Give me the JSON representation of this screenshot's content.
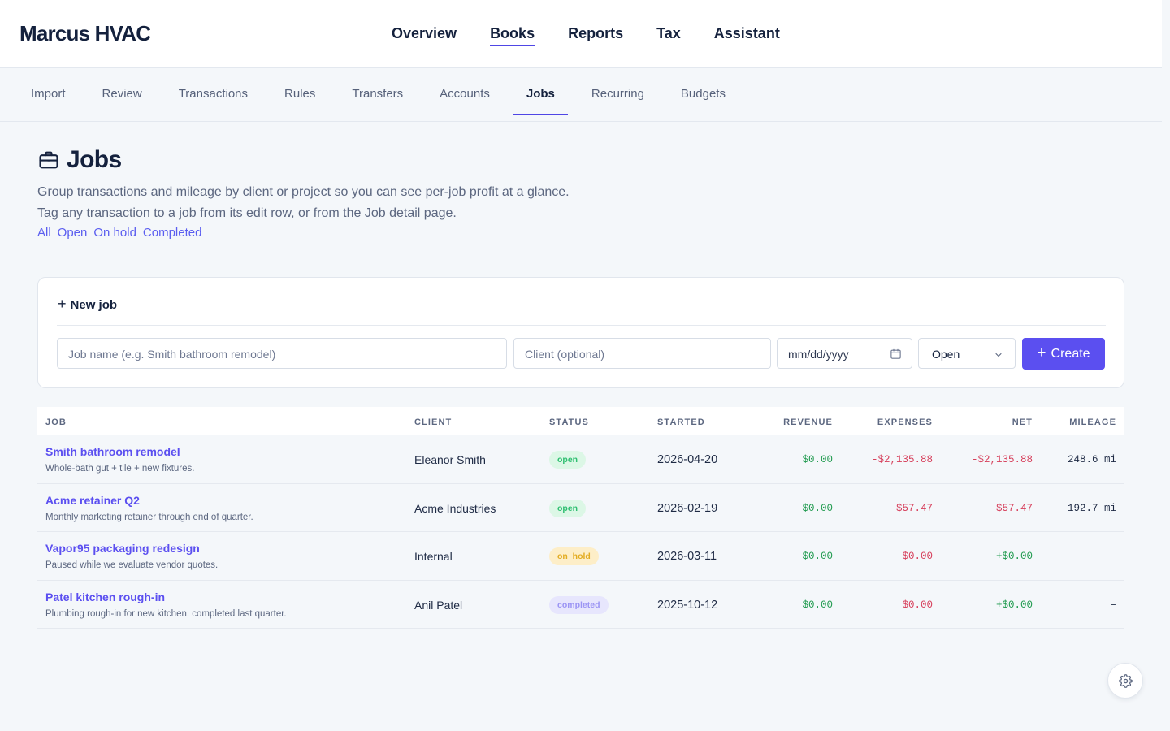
{
  "app": {
    "brand": "Marcus HVAC"
  },
  "main_nav": [
    {
      "label": "Overview",
      "active": false
    },
    {
      "label": "Books",
      "active": true
    },
    {
      "label": "Reports",
      "active": false
    },
    {
      "label": "Tax",
      "active": false
    },
    {
      "label": "Assistant",
      "active": false
    }
  ],
  "sub_nav": [
    {
      "label": "Import"
    },
    {
      "label": "Review"
    },
    {
      "label": "Transactions"
    },
    {
      "label": "Rules"
    },
    {
      "label": "Transfers"
    },
    {
      "label": "Accounts"
    },
    {
      "label": "Jobs",
      "active": true
    },
    {
      "label": "Recurring"
    },
    {
      "label": "Budgets"
    }
  ],
  "page": {
    "icon": "briefcase-icon",
    "title": "Jobs",
    "description_1": "Group transactions and mileage by client or project so you can see per-job profit at a glance.",
    "description_2": "Tag any transaction to a job from its edit row, or from the Job detail page.",
    "filters": [
      "All",
      "Open",
      "On hold",
      "Completed"
    ]
  },
  "new_job": {
    "heading": "New job",
    "job_placeholder": "Job name (e.g. Smith bathroom remodel)",
    "client_placeholder": "Client (optional)",
    "date_placeholder": "mm/dd/yyyy",
    "status_value": "Open",
    "create_label": "Create"
  },
  "table": {
    "headers": {
      "job": "JOB",
      "client": "CLIENT",
      "status": "STATUS",
      "started": "STARTED",
      "revenue": "REVENUE",
      "expenses": "EXPENSES",
      "net": "NET",
      "mileage": "MILEAGE"
    },
    "rows": [
      {
        "name": "Smith bathroom remodel",
        "description": "Whole-bath gut + tile + new fixtures.",
        "client": "Eleanor Smith",
        "status": "open",
        "started": "2026-04-20",
        "revenue": "$0.00",
        "expenses": "-$2,135.88",
        "net": "-$2,135.88",
        "mileage": "248.6 mi"
      },
      {
        "name": "Acme retainer Q2",
        "description": "Monthly marketing retainer through end of quarter.",
        "client": "Acme Industries",
        "status": "open",
        "started": "2026-02-19",
        "revenue": "$0.00",
        "expenses": "-$57.47",
        "net": "-$57.47",
        "mileage": "192.7 mi"
      },
      {
        "name": "Vapor95 packaging redesign",
        "description": "Paused while we evaluate vendor quotes.",
        "client": "Internal",
        "status": "on_hold",
        "started": "2026-03-11",
        "revenue": "$0.00",
        "expenses": "$0.00",
        "net": "+$0.00",
        "mileage": "–"
      },
      {
        "name": "Patel kitchen rough-in",
        "description": "Plumbing rough-in for new kitchen, completed last quarter.",
        "client": "Anil Patel",
        "status": "completed",
        "started": "2025-10-12",
        "revenue": "$0.00",
        "expenses": "$0.00",
        "net": "+$0.00",
        "mileage": "–"
      }
    ]
  },
  "colors": {
    "accent": "#5b4ff0",
    "positive": "#1f9a4e",
    "negative": "#d63e5a"
  },
  "floating": {
    "icon": "gear-icon"
  }
}
